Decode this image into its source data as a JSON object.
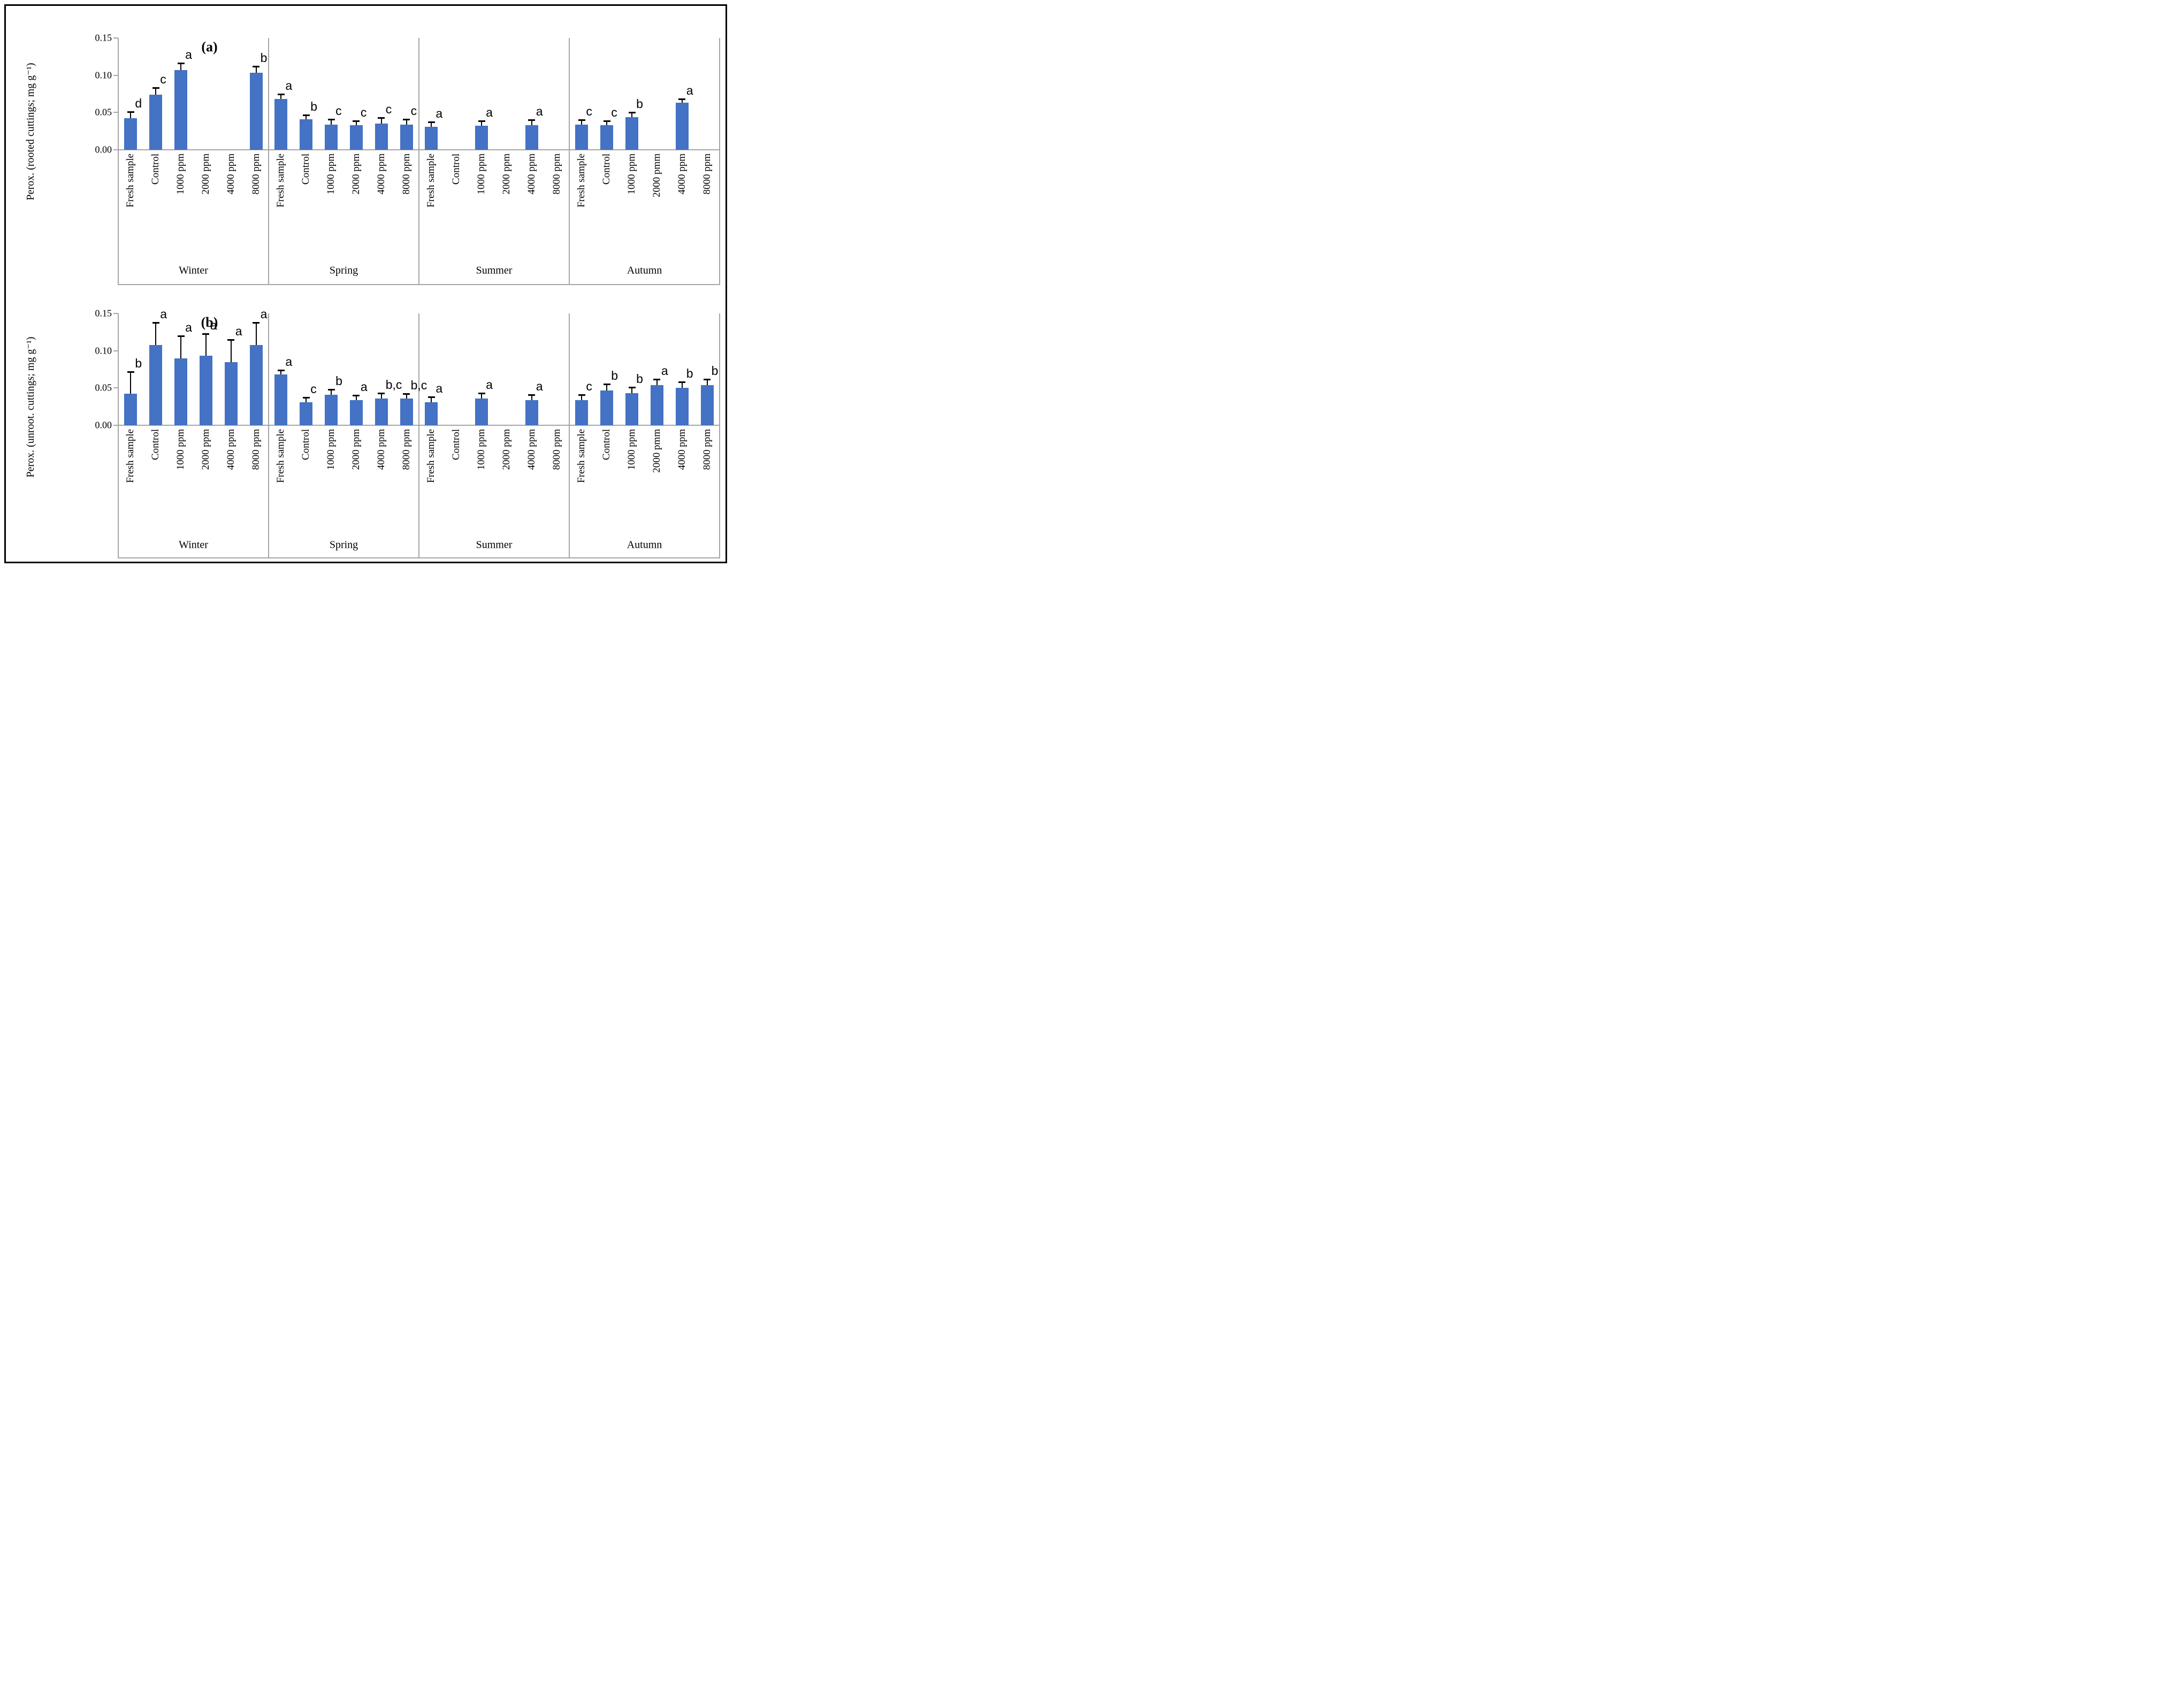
{
  "figure": {
    "background": "#ffffff",
    "border_color": "#000000",
    "bar_color": "#4472C4",
    "axis_color": "#a6a6a6",
    "error_bar_color": "#000000"
  },
  "chart_data": [
    {
      "type": "bar",
      "panel_label": "(a)",
      "ylabel": "Perox. (rooted cuttings; mg g⁻¹)",
      "ylim": [
        0,
        0.15
      ],
      "yticks": [
        "0.15",
        "0.10",
        "0.05",
        "0.00"
      ],
      "grid": false,
      "legend": null,
      "seasons": [
        {
          "name": "Winter",
          "categories": [
            "Fresh sample",
            "Control",
            "1000 ppm",
            "2000 ppm",
            "4000 ppm",
            "8000 ppm"
          ],
          "values": [
            0.042,
            0.074,
            0.107,
            null,
            null,
            0.103
          ],
          "errors": [
            0.009,
            0.009,
            0.009,
            null,
            null,
            0.009
          ],
          "letters": [
            "d",
            "c",
            "a",
            null,
            null,
            "b"
          ]
        },
        {
          "name": "Spring",
          "categories": [
            "Fresh sample",
            "Control",
            "1000 ppm",
            "2000 ppm",
            "4000 ppm",
            "8000 ppm"
          ],
          "values": [
            0.068,
            0.041,
            0.034,
            0.033,
            0.035,
            0.034
          ],
          "errors": [
            0.007,
            0.006,
            0.007,
            0.006,
            0.008,
            0.007
          ],
          "letters": [
            "a",
            "b",
            "c",
            "c",
            "c",
            "c"
          ]
        },
        {
          "name": "Summer",
          "categories": [
            "Fresh sample",
            "Control",
            "1000 ppm",
            "2000 ppm",
            "4000 ppm",
            "8000 ppm"
          ],
          "values": [
            0.031,
            null,
            0.032,
            null,
            0.033,
            null
          ],
          "errors": [
            0.006,
            null,
            0.007,
            null,
            0.007,
            null
          ],
          "letters": [
            "a",
            null,
            "a",
            null,
            "a",
            null
          ]
        },
        {
          "name": "Autumn",
          "categories": [
            "Fresh sample",
            "Control",
            "1000 ppm",
            "2000 pmm",
            "4000 ppm",
            "8000 ppm"
          ],
          "values": [
            0.034,
            0.033,
            0.044,
            null,
            0.063,
            null
          ],
          "errors": [
            0.006,
            0.006,
            0.006,
            null,
            0.005,
            null
          ],
          "letters": [
            "c",
            "c",
            "b",
            null,
            "a",
            null
          ]
        }
      ]
    },
    {
      "type": "bar",
      "panel_label": "(b)",
      "ylabel": "Perox. (unroot. cuttings; mg g⁻¹)",
      "ylim": [
        0,
        0.15
      ],
      "yticks": [
        "0.15",
        "0.10",
        "0.05",
        "0.00"
      ],
      "grid": false,
      "legend": null,
      "seasons": [
        {
          "name": "Winter",
          "categories": [
            "Fresh sample",
            "Control",
            "1000 ppm",
            "2000 ppm",
            "4000 ppm",
            "8000 ppm"
          ],
          "values": [
            0.042,
            0.108,
            0.09,
            0.093,
            0.085,
            0.108
          ],
          "errors": [
            0.03,
            0.03,
            0.03,
            0.03,
            0.03,
            0.03
          ],
          "letters": [
            "b",
            "a",
            "a",
            "a",
            "a",
            "a"
          ]
        },
        {
          "name": "Spring",
          "categories": [
            "Fresh sample",
            "Control",
            "1000 ppm",
            "2000 ppm",
            "4000 ppm",
            "8000 ppm"
          ],
          "values": [
            0.068,
            0.031,
            0.041,
            0.034,
            0.036,
            0.036
          ],
          "errors": [
            0.006,
            0.006,
            0.007,
            0.006,
            0.007,
            0.006
          ],
          "letters": [
            "a",
            "c",
            "b",
            "a",
            "b,c",
            "b,c"
          ]
        },
        {
          "name": "Summer",
          "categories": [
            "Fresh sample",
            "Control",
            "1000 ppm",
            "2000 ppm",
            "4000 ppm",
            "8000 ppm"
          ],
          "values": [
            0.031,
            null,
            0.036,
            null,
            0.034,
            null
          ],
          "errors": [
            0.007,
            null,
            0.007,
            null,
            0.007,
            null
          ],
          "letters": [
            "a",
            null,
            "a",
            null,
            "a",
            null
          ]
        },
        {
          "name": "Autumn",
          "categories": [
            "Fresh sample",
            "Control",
            "1000 ppm",
            "2000 pmm",
            "4000 ppm",
            "8000 ppm"
          ],
          "values": [
            0.034,
            0.047,
            0.043,
            0.054,
            0.05,
            0.054
          ],
          "errors": [
            0.007,
            0.008,
            0.008,
            0.008,
            0.008,
            0.008
          ],
          "letters": [
            "c",
            "b",
            "b",
            "a",
            "b",
            "b"
          ]
        }
      ]
    }
  ]
}
